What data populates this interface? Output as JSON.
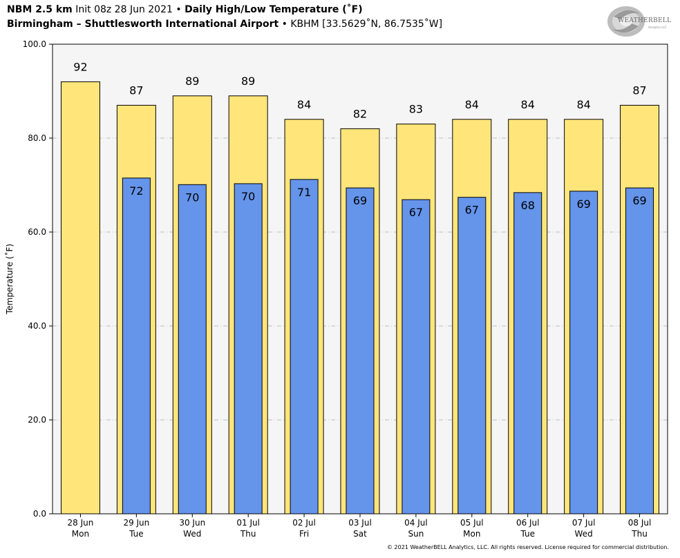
{
  "header": {
    "line1_bold_a": "NBM 2.5 km",
    "line1_init": "Init 08z 28 Jun 2021",
    "line1_sep": "•",
    "line1_bold_b": "Daily High/Low Temperature (˚F)",
    "line2_bold": "Birmingham – Shuttlesworth International Airport",
    "line2_sep": "•",
    "line2_station": "KBHM [33.5629˚N, 86.7535˚W]"
  },
  "logo": {
    "text": "WEATHERBELL",
    "sub": "Analytics LLC",
    "icon": "weatherbell-swirl-logo"
  },
  "copyright": "© 2021 WeatherBELL Analytics, LLC. All rights reserved. License required for commercial distribution.",
  "colors": {
    "high": "#FFE57A",
    "low": "#6594EB",
    "plot_bg": "#F5F5F5",
    "grid": "#AAAAAA"
  },
  "chart_data": {
    "type": "bar",
    "title": "Daily High/Low Temperature (˚F)",
    "ylabel": "Temperature (˚F)",
    "xlabel": "",
    "ylim": [
      0,
      100
    ],
    "yticks": [
      "0.0",
      "20.0",
      "40.0",
      "60.0",
      "80.0",
      "100.0"
    ],
    "grid": true,
    "categories": [
      [
        "28 Jun",
        "Mon"
      ],
      [
        "29 Jun",
        "Tue"
      ],
      [
        "30 Jun",
        "Wed"
      ],
      [
        "01 Jul",
        "Thu"
      ],
      [
        "02 Jul",
        "Fri"
      ],
      [
        "03 Jul",
        "Sat"
      ],
      [
        "04 Jul",
        "Sun"
      ],
      [
        "05 Jul",
        "Mon"
      ],
      [
        "06 Jul",
        "Tue"
      ],
      [
        "07 Jul",
        "Wed"
      ],
      [
        "08 Jul",
        "Thu"
      ]
    ],
    "series": [
      {
        "values": [
          92,
          87,
          89,
          89,
          84,
          82,
          83,
          84,
          84,
          84,
          87
        ],
        "labels": [
          "92",
          "87",
          "89",
          "89",
          "84",
          "82",
          "83",
          "84",
          "84",
          "84",
          "87"
        ]
      },
      {
        "values": [
          null,
          71.5,
          70.1,
          70.3,
          71.2,
          69.4,
          66.9,
          67.4,
          68.4,
          68.7,
          69.4
        ],
        "labels": [
          "",
          "72",
          "70",
          "70",
          "71",
          "69",
          "67",
          "67",
          "68",
          "69",
          "69"
        ]
      }
    ]
  }
}
